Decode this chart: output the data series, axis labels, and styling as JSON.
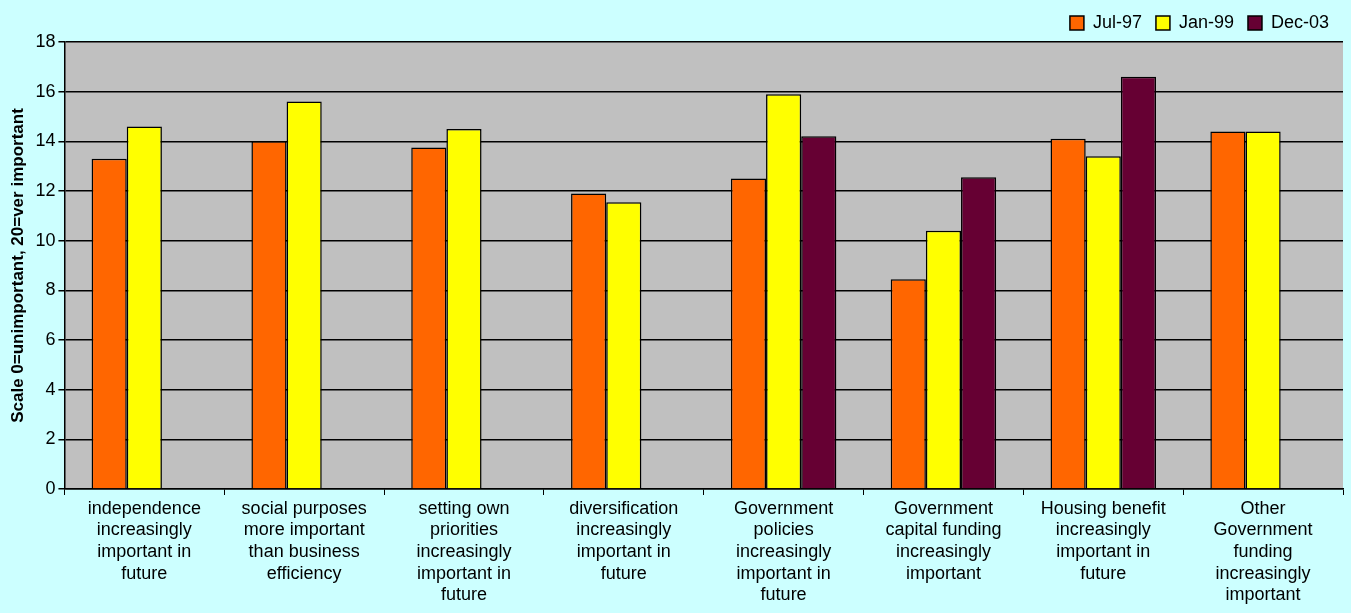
{
  "chart_data": {
    "type": "bar",
    "ylabel": "Scale 0=unimportant, 20=ver important",
    "categories": [
      "independence increasingly important in future",
      "social purposes more important than business efficiency",
      "setting own priorities increasingly important in future",
      "diversification increasingly important in future",
      "Government policies increasingly important in future",
      "Government capital funding increasingly important",
      "Housing benefit increasingly important in future",
      "Other Government funding increasingly important"
    ],
    "series": [
      {
        "name": "Jul-97",
        "color": "#ff6600",
        "values": [
          13.3,
          14.0,
          13.75,
          11.9,
          12.5,
          8.45,
          14.1,
          14.4
        ]
      },
      {
        "name": "Jan-99",
        "color": "#ffff00",
        "values": [
          14.6,
          15.6,
          14.5,
          11.55,
          15.9,
          10.4,
          13.4,
          14.4
        ]
      },
      {
        "name": "Dec-03",
        "color": "#660033",
        "values": [
          null,
          null,
          null,
          null,
          14.2,
          12.55,
          16.6,
          null
        ]
      }
    ],
    "ylim": [
      0,
      18
    ],
    "yticks": [
      0,
      2,
      4,
      6,
      8,
      10,
      12,
      14,
      16,
      18
    ],
    "grid": "y",
    "legend": "top right"
  }
}
